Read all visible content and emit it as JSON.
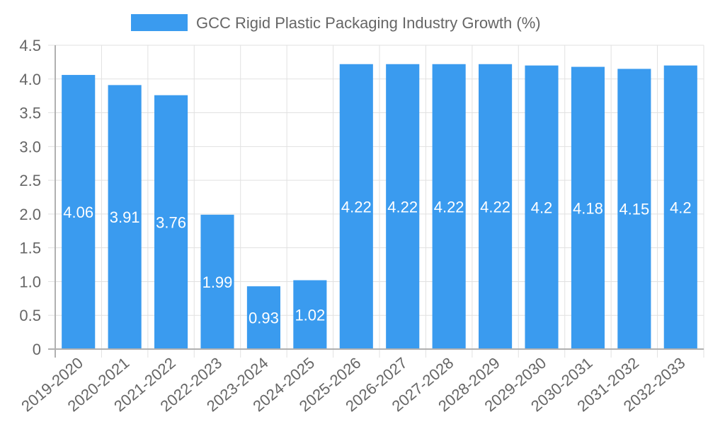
{
  "chart_data": {
    "type": "bar",
    "title": "",
    "legend": {
      "position": "top",
      "entries": [
        {
          "label": "GCC Rigid Plastic Packaging Industry Growth (%)",
          "color": "#3a9bef"
        }
      ]
    },
    "xlabel": "",
    "ylabel": "",
    "ylim": [
      0,
      4.5
    ],
    "yticks": [
      "0",
      "0.5",
      "1.0",
      "1.5",
      "2.0",
      "2.5",
      "3.0",
      "3.5",
      "4.0",
      "4.5"
    ],
    "ytick_values": [
      0,
      0.5,
      1.0,
      1.5,
      2.0,
      2.5,
      3.0,
      3.5,
      4.0,
      4.5
    ],
    "grid": true,
    "categories": [
      "2019-2020",
      "2020-2021",
      "2021-2022",
      "2022-2023",
      "2023-2024",
      "2024-2025",
      "2025-2026",
      "2026-2027",
      "2027-2028",
      "2028-2029",
      "2029-2030",
      "2030-2031",
      "2031-2032",
      "2032-2033"
    ],
    "series": [
      {
        "name": "GCC Rigid Plastic Packaging Industry Growth (%)",
        "color": "#3a9bef",
        "values": [
          4.06,
          3.91,
          3.76,
          1.99,
          0.93,
          1.02,
          4.22,
          4.22,
          4.22,
          4.22,
          4.2,
          4.18,
          4.15,
          4.2
        ],
        "labels": [
          "4.06",
          "3.91",
          "3.76",
          "1.99",
          "0.93",
          "1.02",
          "4.22",
          "4.22",
          "4.22",
          "4.22",
          "4.2",
          "4.18",
          "4.15",
          "4.2"
        ]
      }
    ]
  }
}
